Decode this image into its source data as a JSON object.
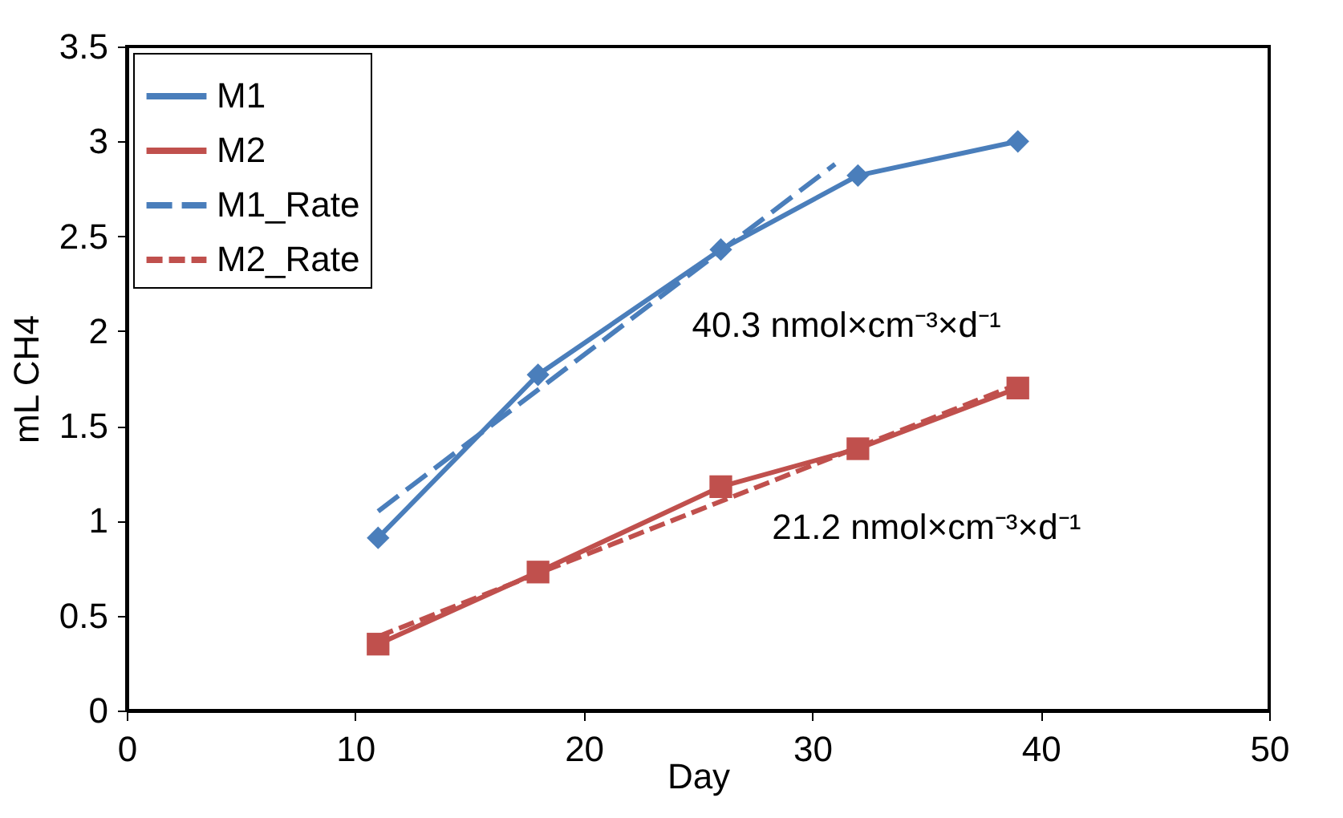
{
  "chart_data": {
    "type": "line",
    "xlabel": "Day",
    "ylabel": "mL CH4",
    "xlim": [
      0,
      50
    ],
    "xticks": [
      0,
      10,
      20,
      30,
      40,
      50
    ],
    "ylim": [
      0,
      3.5
    ],
    "yticks": [
      0,
      0.5,
      1,
      1.5,
      2,
      2.5,
      3,
      3.5
    ],
    "grid": false,
    "legend": "top left",
    "series": [
      {
        "name": "M1",
        "color": "#4a7ebb",
        "marker": "diamond",
        "line_style": "solid",
        "x": [
          11,
          18,
          26,
          32,
          39
        ],
        "values": [
          0.91,
          1.77,
          2.43,
          2.82,
          3.0
        ]
      },
      {
        "name": "M2",
        "color": "#c0504d",
        "marker": "square",
        "line_style": "solid",
        "x": [
          11,
          18,
          26,
          32,
          39
        ],
        "values": [
          0.35,
          0.73,
          1.18,
          1.38,
          1.7
        ]
      },
      {
        "name": "M1_Rate",
        "color": "#4a7ebb",
        "marker": "none",
        "line_style": "dashed",
        "x": [
          11,
          31
        ],
        "values": [
          1.05,
          2.88
        ]
      },
      {
        "name": "M2_Rate",
        "color": "#c0504d",
        "marker": "none",
        "line_style": "dotted",
        "x": [
          11,
          39
        ],
        "values": [
          0.39,
          1.72
        ]
      }
    ],
    "annotations": [
      "40.3 nmol×cm⁻³×d⁻¹",
      "21.2 nmol×cm⁻³×d⁻¹"
    ]
  }
}
